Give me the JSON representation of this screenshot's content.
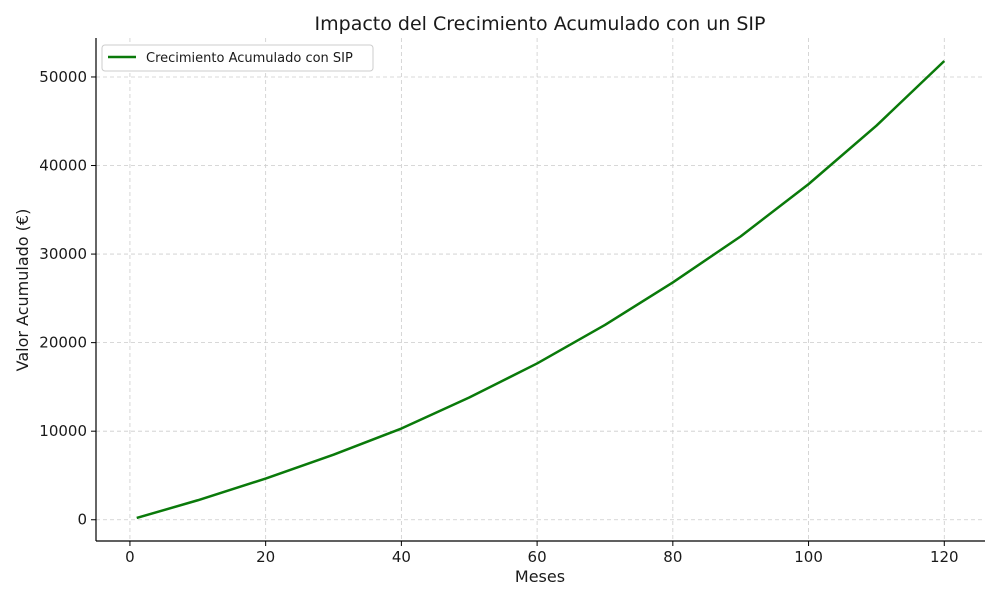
{
  "chart_data": {
    "type": "line",
    "title": "Impacto del Crecimiento Acumulado con un SIP",
    "xlabel": "Meses",
    "ylabel": "Valor Acumulado (€)",
    "xlim": [
      -5,
      126
    ],
    "ylim": [
      -2400,
      54400
    ],
    "x_ticks": [
      0,
      20,
      40,
      60,
      80,
      100,
      120
    ],
    "y_ticks": [
      0,
      10000,
      20000,
      30000,
      40000,
      50000
    ],
    "x_tick_labels": [
      "0",
      "20",
      "40",
      "60",
      "80",
      "100",
      "120"
    ],
    "y_tick_labels": [
      "0",
      "10000",
      "20000",
      "30000",
      "40000",
      "50000"
    ],
    "grid": true,
    "legend_position": "top-left",
    "series": [
      {
        "name": "Crecimiento Acumulado con SIP",
        "color": "#0a7a0a",
        "x": [
          1,
          10,
          20,
          30,
          40,
          50,
          60,
          70,
          80,
          90,
          100,
          110,
          120
        ],
        "y": [
          200,
          2200,
          4650,
          7350,
          10300,
          13800,
          17650,
          22000,
          26800,
          32000,
          37900,
          44500,
          51800
        ]
      }
    ]
  }
}
